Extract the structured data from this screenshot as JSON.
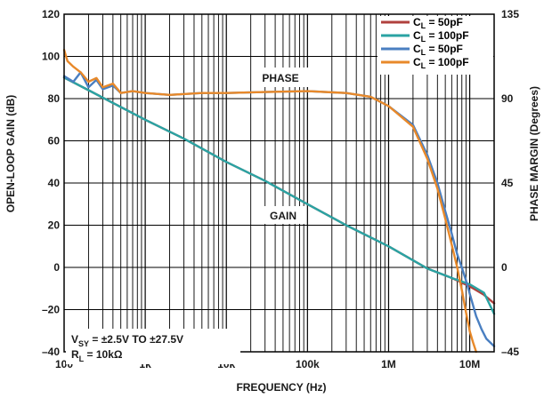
{
  "chart_data": {
    "type": "line",
    "x_scale": "log",
    "xlim": [
      100,
      20000000
    ],
    "xlabel": "FREQUENCY (Hz)",
    "x_ticks": [
      100,
      1000,
      10000,
      100000,
      1000000,
      10000000
    ],
    "x_tick_labels": [
      "100",
      "1k",
      "10k",
      "100k",
      "1M",
      "10M"
    ],
    "ylabel_left": "OPEN-LOOP GAIN (dB)",
    "ylim_left": [
      -40,
      120
    ],
    "y_ticks_left": [
      -40,
      -20,
      0,
      20,
      40,
      60,
      80,
      100,
      120
    ],
    "y_tick_labels_left": [
      "–40",
      "–20",
      "0",
      "20",
      "40",
      "60",
      "80",
      "100",
      "120"
    ],
    "ylabel_right": "PHASE MARGIN (Degrees)",
    "ylim_right": [
      -45,
      135
    ],
    "y_ticks_right": [
      -45,
      0,
      45,
      90,
      135
    ],
    "y_tick_labels_right": [
      "–45",
      "0",
      "45",
      "90",
      "135"
    ],
    "grid": true,
    "legend_position": "top-right",
    "legend": [
      {
        "label_main": "C",
        "label_sub": "L",
        "label_rest": " = 50pF",
        "color": "#b0413e"
      },
      {
        "label_main": "C",
        "label_sub": "L",
        "label_rest": " = 100pF",
        "color": "#2aa3a3"
      },
      {
        "label_main": "C",
        "label_sub": "L",
        "label_rest": " = 50pF",
        "color": "#4a7fc1"
      },
      {
        "label_main": "C",
        "label_sub": "L",
        "label_rest": " = 100pF",
        "color": "#e8892a"
      }
    ],
    "annotations": {
      "phase": "PHASE",
      "gain": "GAIN",
      "vsy_main": "V",
      "vsy_sub": "SY",
      "vsy_rest": " = ±2.5V TO ±27.5V",
      "rl_main": "R",
      "rl_sub": "L",
      "rl_rest": " = 10kΩ"
    },
    "series": [
      {
        "axis": "left",
        "color": "#b0413e",
        "x": [
          100,
          200,
          500,
          1000,
          3000,
          10000,
          30000,
          100000,
          300000,
          1000000,
          3000000,
          6000000,
          10000000,
          15000000,
          20000000
        ],
        "y": [
          90,
          84,
          76,
          70,
          61,
          50,
          41,
          30,
          20,
          10,
          -0.5,
          -5,
          -9,
          -13,
          -17
        ]
      },
      {
        "axis": "left",
        "color": "#2aa3a3",
        "x": [
          100,
          200,
          500,
          1000,
          3000,
          10000,
          30000,
          100000,
          300000,
          1000000,
          3000000,
          6000000,
          10000000,
          15000000,
          20000000
        ],
        "y": [
          90,
          84,
          76,
          70,
          61,
          50,
          41,
          30,
          20,
          10,
          -0.5,
          -5,
          -8,
          -12,
          -22
        ]
      },
      {
        "axis": "right",
        "color": "#4a7fc1",
        "x": [
          100,
          130,
          160,
          200,
          250,
          300,
          400,
          500,
          700,
          1000,
          2000,
          5000,
          10000,
          30000,
          100000,
          300000,
          600000,
          1000000,
          2000000,
          3000000,
          4000000,
          5000000,
          6000000,
          7000000,
          8000000,
          9000000,
          10000000,
          12000000,
          14000000,
          16000000,
          20000000
        ],
        "y": [
          102,
          99,
          104,
          96,
          100,
          95,
          97,
          93,
          94,
          93,
          92,
          93,
          93,
          93.5,
          94,
          93,
          91,
          86,
          76,
          60,
          45,
          30,
          18,
          7,
          0,
          -7,
          -14,
          -26,
          -33,
          -38,
          -42
        ]
      },
      {
        "axis": "right",
        "color": "#e8892a",
        "x": [
          100,
          110,
          130,
          160,
          200,
          250,
          300,
          400,
          500,
          700,
          1000,
          2000,
          5000,
          10000,
          30000,
          100000,
          300000,
          600000,
          1000000,
          2000000,
          3000000,
          4000000,
          5000000,
          6000000,
          7000000,
          8000000,
          9000000,
          10000000,
          11000000,
          12000000
        ],
        "y": [
          116,
          110,
          107,
          104,
          99,
          101,
          96,
          98,
          93,
          94,
          93,
          92,
          93,
          93,
          93.5,
          94,
          93,
          91,
          86,
          75,
          58,
          42,
          26,
          12,
          0,
          -12,
          -24,
          -34,
          -40,
          -45
        ]
      }
    ]
  }
}
